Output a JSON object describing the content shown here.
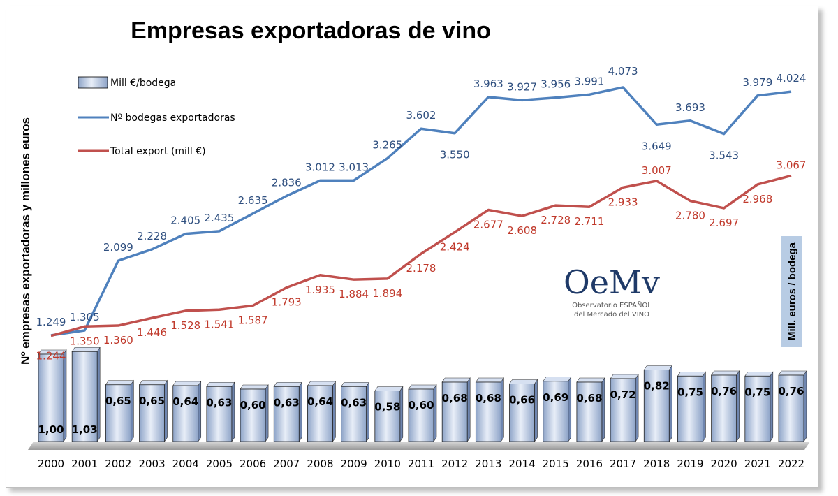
{
  "chart_data": {
    "type": "bar",
    "title": "Empresas exportadoras de vino",
    "ylabel": "Nº empresas exportadoras y millones euros",
    "y2label": "Mill. euros / bodega",
    "categories": [
      "2000",
      "2001",
      "2002",
      "2003",
      "2004",
      "2005",
      "2006",
      "2007",
      "2008",
      "2009",
      "2010",
      "2011",
      "2012",
      "2013",
      "2014",
      "2015",
      "2016",
      "2017",
      "2018",
      "2019",
      "2020",
      "2021",
      "2022"
    ],
    "series": [
      {
        "name": "Mill €/bodega",
        "kind": "bar",
        "color": "#c5d3ec",
        "values": [
          1.0,
          1.03,
          0.65,
          0.65,
          0.64,
          0.63,
          0.6,
          0.63,
          0.64,
          0.63,
          0.58,
          0.6,
          0.68,
          0.68,
          0.66,
          0.69,
          0.68,
          0.72,
          0.82,
          0.75,
          0.76,
          0.75,
          0.76
        ],
        "labels": [
          "1,00",
          "1,03",
          "0,65",
          "0,65",
          "0,64",
          "0,63",
          "0,60",
          "0,63",
          "0,64",
          "0,63",
          "0,58",
          "0,60",
          "0,68",
          "0,68",
          "0,66",
          "0,69",
          "0,68",
          "0,72",
          "0,82",
          "0,75",
          "0,76",
          "0,75",
          "0,76"
        ]
      },
      {
        "name": "Nº bodegas exportadoras",
        "kind": "line",
        "color": "#4f81bd",
        "values": [
          1249,
          1305,
          2099,
          2228,
          2405,
          2435,
          2635,
          2836,
          3012,
          3013,
          3265,
          3602,
          3550,
          3963,
          3927,
          3956,
          3991,
          4073,
          3649,
          3693,
          3543,
          3979,
          4024
        ],
        "labels": [
          "1.249",
          "1.305",
          "2.099",
          "2.228",
          "2.405",
          "2.435",
          "2.635",
          "2.836",
          "3.012",
          "3.013",
          "3.265",
          "3.602",
          "3.550",
          "3.963",
          "3.927",
          "3.956",
          "3.991",
          "4.073",
          "3.649",
          "3.693",
          "3.543",
          "3.979",
          "4.024"
        ]
      },
      {
        "name": "Total export (mill €)",
        "kind": "line",
        "color": "#c0504d",
        "values": [
          1244,
          1350,
          1360,
          1446,
          1528,
          1541,
          1587,
          1793,
          1935,
          1884,
          1894,
          2178,
          2424,
          2677,
          2608,
          2728,
          2711,
          2933,
          3007,
          2780,
          2697,
          2968,
          3067
        ],
        "labels": [
          "1.244",
          "1.350",
          "1.360",
          "1.446",
          "1.528",
          "1.541",
          "1.587",
          "1.793",
          "1.935",
          "1.884",
          "1.894",
          "2.178",
          "2.424",
          "2.677",
          "2.608",
          "2.728",
          "2.711",
          "2.933",
          "3.007",
          "2.780",
          "2.697",
          "2.968",
          "3.067"
        ]
      }
    ],
    "legend": "top-left"
  },
  "logo": {
    "mark": "OeMv",
    "line1": "Observatorio ESPAÑOL",
    "line2": "del Mercado del VINO"
  }
}
